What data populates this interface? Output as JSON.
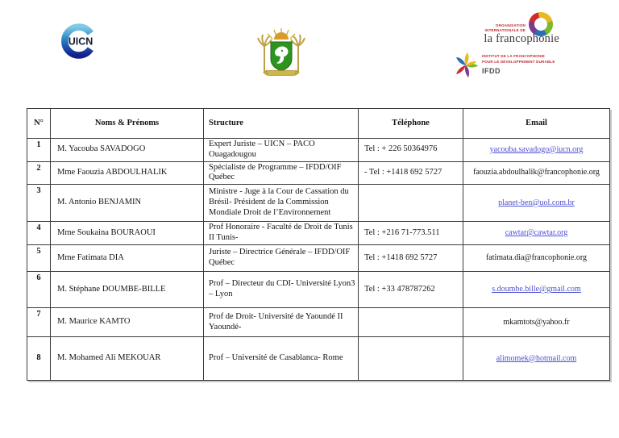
{
  "logos": {
    "uicn": {
      "label": "UICN"
    },
    "cote_divoire_arms": {
      "name": "armoiries-cote-divoire"
    },
    "oif": {
      "org_line": "ORGANISATION INTERNATIONALE DE",
      "brand": "la francophonie",
      "ifdd_line1": "INSTITUT DE LA FRANCOPHONIE",
      "ifdd_line2": "POUR LE DÉVELOPPEMENT DURABLE",
      "ifdd_acronym": "IFDD"
    }
  },
  "colors": {
    "link": "#4d50d2",
    "table_border": "#3a3a3a",
    "oif_red": "#c0272d",
    "arms_green": "#2e9420",
    "arms_gold": "#c2a244"
  },
  "table": {
    "headers": [
      "N°",
      "Noms & Prénoms",
      "Structure",
      "Téléphone",
      "Email"
    ],
    "rows": [
      {
        "num": "1",
        "name": "M. Yacouba SAVADOGO",
        "structure": "Expert Juriste – UICN – PACO Ouagadougou",
        "phone": "Tel : + 226 50364976",
        "email": "yacouba.savadogo@iucn.org",
        "email_link": true
      },
      {
        "num": "2",
        "name": "Mme Faouzia ABDOULHALIK",
        "structure": "Spécialiste de Programme – IFDD/OIF Québec",
        "phone": "- Tel : +1418 692 5727",
        "email": "faouzia.abdoulhalik@francophonie.org",
        "email_link": false
      },
      {
        "num": "3",
        "name": "M. Antonio BENJAMIN",
        "structure": "Ministre - Juge à la Cour de Cassation du Brésil- Président de la Commission Mondiale Droit de l’Environnement",
        "phone": "",
        "email": "planet-ben@uol.com.br",
        "email_link": true
      },
      {
        "num": "4",
        "name": "Mme Soukaina BOURAOUI",
        "structure": "Prof Honoraire - Faculté de Droit de Tunis II Tunis-",
        "phone": "Tel : +216 71-773.511",
        "email": "cawtar@cawtar.org",
        "email_link": true
      },
      {
        "num": "5",
        "name": "Mme Fatimata DIA",
        "structure": "Juriste – Directrice Générale – IFDD/OIF Québec",
        "phone": "Tel : +1418 692 5727",
        "email": "fatimata.dia@francophonie.org",
        "email_link": false
      },
      {
        "num": "6",
        "name": "M. Stéphane DOUMBE-BILLE",
        "structure": "Prof – Directeur du CDI- Université Lyon3 – Lyon",
        "phone": "Tel : +33 478787262",
        "email": "s.doumbe.bille@gmail.com",
        "email_link": true
      },
      {
        "num": "7",
        "name": "M. Maurice KAMTO",
        "structure": "Prof de Droit- Université de Yaoundé II Yaoundé-",
        "phone": "",
        "email": "mkamtots@yahoo.fr",
        "email_link": false
      },
      {
        "num": "8",
        "name": "M. Mohamed Ali MEKOUAR",
        "structure": "Prof – Université de Casablanca- Rome",
        "phone": "",
        "email": "alimomek@hotmail.com",
        "email_link": true
      }
    ]
  }
}
